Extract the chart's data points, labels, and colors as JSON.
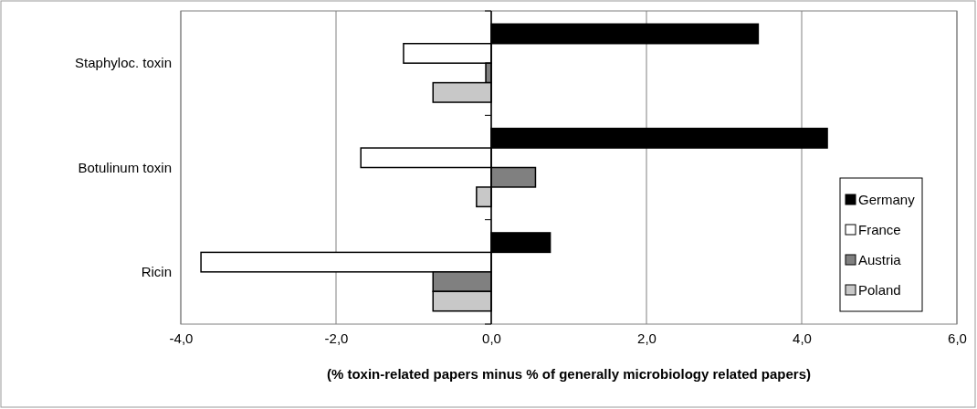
{
  "chart_data": {
    "type": "bar",
    "orientation": "horizontal",
    "xlabel": "(% toxin-related papers minus % of generally microbiology related papers)",
    "categories": [
      "Staphyloc. toxin",
      "Botulinum toxin",
      "Ricin"
    ],
    "series": [
      {
        "name": "Germany",
        "color": "#000000",
        "values": [
          3.44,
          4.33,
          0.76
        ]
      },
      {
        "name": "France",
        "color": "#ffffff",
        "values": [
          -1.13,
          -1.68,
          -3.74
        ]
      },
      {
        "name": "Austria",
        "color": "#808080",
        "values": [
          -0.07,
          0.57,
          -0.75
        ]
      },
      {
        "name": "Poland",
        "color": "#c8c8c8",
        "values": [
          -0.75,
          -0.19,
          -0.75
        ]
      }
    ],
    "xlim": [
      -4,
      6
    ],
    "xticks": [
      {
        "value": -4,
        "label": "-4,0"
      },
      {
        "value": -2,
        "label": "-2,0"
      },
      {
        "value": 0,
        "label": "0,0"
      },
      {
        "value": 2,
        "label": "2,0"
      },
      {
        "value": 4,
        "label": "4,0"
      },
      {
        "value": 6,
        "label": "6,0"
      }
    ],
    "grid": "x",
    "legend": "bottom right"
  }
}
